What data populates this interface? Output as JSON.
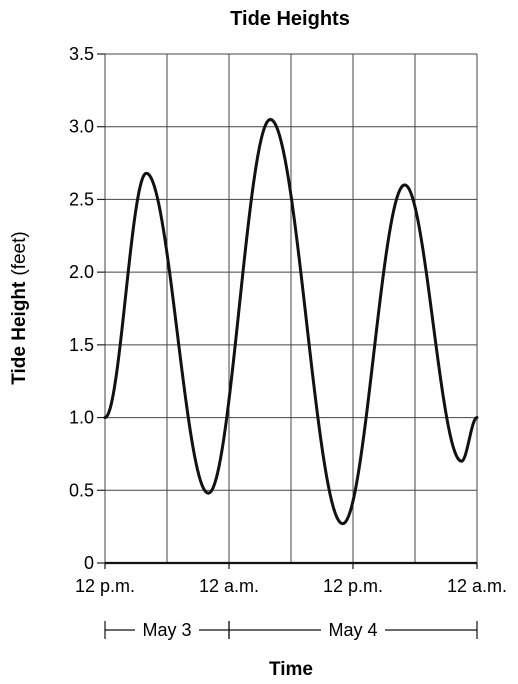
{
  "chart_data": {
    "type": "line",
    "title": "Tide Heights",
    "xlabel": "Time",
    "ylabel": "Tide Height",
    "ylabel_unit": "(feet)",
    "x_tick_labels": [
      "12 p.m.",
      "12 a.m.",
      "12 p.m.",
      "12 a.m."
    ],
    "x_ticks_hours": [
      0,
      12,
      24,
      36
    ],
    "xlim_hours": [
      0,
      36
    ],
    "ylim": [
      0,
      3.5
    ],
    "y_ticks": [
      0,
      0.5,
      1.0,
      1.5,
      2.0,
      2.5,
      3.0,
      3.5
    ],
    "y_tick_labels": [
      "0",
      "0.5",
      "1.0",
      "1.5",
      "2.0",
      "2.5",
      "3.0",
      "3.5"
    ],
    "grid": true,
    "date_ranges": [
      {
        "label": "May 3",
        "start_hour": 0,
        "end_hour": 12
      },
      {
        "label": "May 4",
        "start_hour": 12,
        "end_hour": 36
      }
    ],
    "series": [
      {
        "extrema": [
          {
            "x": 0,
            "y": 1.0
          },
          {
            "x": 4,
            "y": 2.68
          },
          {
            "x": 10,
            "y": 0.48
          },
          {
            "x": 16,
            "y": 3.05
          },
          {
            "x": 23,
            "y": 0.27
          },
          {
            "x": 29,
            "y": 2.6
          },
          {
            "x": 34.5,
            "y": 0.7
          },
          {
            "x": 36,
            "y": 1.0
          }
        ]
      }
    ]
  }
}
